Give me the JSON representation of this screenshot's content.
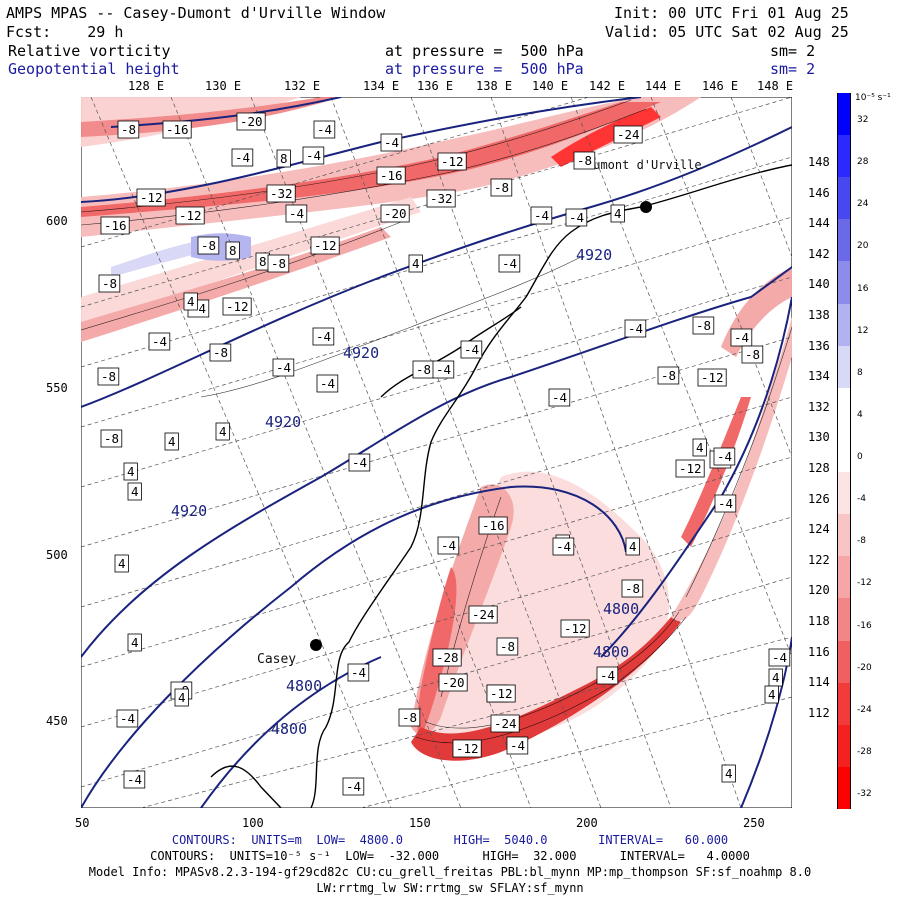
{
  "header": {
    "title": "AMPS MPAS -- Casey-Dumont d'Urville Window",
    "init": "Init: 00 UTC Fri 01 Aug 25",
    "fcst": "Fcst:    29 h",
    "valid": "Valid: 05 UTC Sat 02 Aug 25",
    "field1_name": "Relative vorticity",
    "field1_pressure": "at pressure =  500 hPa",
    "field1_sm": "sm= 2",
    "field2_name": "Geopotential height",
    "field2_pressure": "at pressure =  500 hPa",
    "field2_sm": "sm= 2"
  },
  "map": {
    "top_lon_labels": [
      "128 E",
      "130 E",
      "132 E",
      "134 E",
      "136 E",
      "138 E",
      "140 E",
      "142 E",
      "144 E",
      "146 E",
      "148 E"
    ],
    "right_lat_labels": [
      "148 E",
      "146 E",
      "144 E",
      "142 E",
      "140 E",
      "138 E",
      "136 E",
      "134 E",
      "132 E",
      "130 E",
      "128 E",
      "126 E",
      "124 E",
      "122 E",
      "120 E",
      "118 E",
      "116 E",
      "114 E",
      "112 E"
    ],
    "y_axis_labels": [
      "600",
      "550",
      "500",
      "450"
    ],
    "x_axis_labels": [
      "50",
      "100",
      "150",
      "200",
      "250"
    ],
    "places": [
      "Casey",
      "Dumont d'Urville"
    ],
    "height_contour_labels": [
      "4920",
      "4920",
      "4920",
      "4920",
      "4800",
      "4800",
      "4800",
      "4800"
    ],
    "vorticity_box_labels": [
      "-8",
      "-16",
      "-20",
      "-4",
      "-4",
      "-4",
      "8",
      "-4",
      "-12",
      "-32",
      "-16",
      "-12",
      "-24",
      "-12",
      "-8",
      "-8",
      "-32",
      "-20",
      "-16",
      "-8",
      "-4",
      "8",
      "-12",
      "8",
      "-8",
      "-4",
      "4",
      "-4",
      "-4",
      "4",
      "-8",
      "-12",
      "-4",
      "-4",
      "4",
      "-4",
      "-8",
      "-4",
      "-4",
      "-8",
      "-4",
      "-8",
      "-12",
      "-8",
      "-4",
      "-8",
      "-4",
      "-8",
      "4",
      "4",
      "-16",
      "-4",
      "4",
      "4",
      "-12",
      "-4",
      "-4",
      "4",
      "-4",
      "-8",
      "-4",
      "-4",
      "4",
      "-8",
      "4",
      "-4",
      "-24",
      "-28",
      "-20",
      "-8",
      "-12",
      "-4",
      "-4",
      "-12",
      "-4",
      "-8",
      "-12",
      "-24",
      "-4",
      "-4",
      "-8",
      "-4",
      "-4",
      "4",
      "4",
      "4",
      "4",
      "-4",
      "4",
      "4",
      "-4"
    ]
  },
  "colorbar": {
    "unit": "10⁻⁵ s⁻¹",
    "labels": [
      "32",
      "28",
      "24",
      "20",
      "16",
      "12",
      "8",
      "4",
      "0",
      "-4",
      "-8",
      "-12",
      "-16",
      "-20",
      "-24",
      "-28",
      "-32"
    ],
    "colors": [
      "#0000ff",
      "#2a2aff",
      "#4848f0",
      "#6a6ae8",
      "#8c8cea",
      "#b2b2f0",
      "#d8d8f7",
      "#ffffff",
      "#ffffff",
      "#fde4e4",
      "#f8c4c4",
      "#f5a6a6",
      "#f28686",
      "#f06060",
      "#f23c3c",
      "#f52020",
      "#ff0000"
    ]
  },
  "footer": {
    "line1": "CONTOURS:  UNITS=m  LOW=  4800.0       HIGH=  5040.0       INTERVAL=   60.000",
    "line2": "CONTOURS:  UNITS=10⁻⁵ s⁻¹  LOW=  -32.000      HIGH=  32.000      INTERVAL=   4.0000",
    "line3": "Model Info: MPASv8.2.3-194-gf29cd82c CU:cu_grell_freitas PBL:bl_mynn MP:mp_thompson SF:sf_noahmp 8.0",
    "line4": "LW:rrtmg_lw SW:rrtmg_sw SFLAY:sf_mynn"
  }
}
